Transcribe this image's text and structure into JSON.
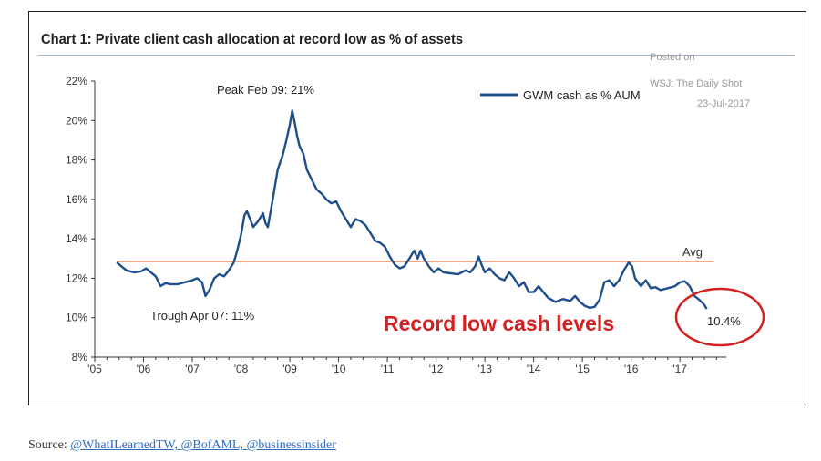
{
  "chart_data": {
    "type": "line",
    "title": "Chart 1: Private client cash allocation at record low as % of assets",
    "series": [
      {
        "name": "GWM cash as % AUM",
        "color": "#1f4e8c",
        "points": [
          [
            2005.45,
            12.8
          ],
          [
            2005.55,
            12.6
          ],
          [
            2005.65,
            12.4
          ],
          [
            2005.8,
            12.3
          ],
          [
            2005.95,
            12.35
          ],
          [
            2006.05,
            12.5
          ],
          [
            2006.15,
            12.3
          ],
          [
            2006.25,
            12.1
          ],
          [
            2006.35,
            11.6
          ],
          [
            2006.45,
            11.75
          ],
          [
            2006.55,
            11.7
          ],
          [
            2006.7,
            11.7
          ],
          [
            2006.85,
            11.8
          ],
          [
            2007.0,
            11.9
          ],
          [
            2007.1,
            12.0
          ],
          [
            2007.2,
            11.8
          ],
          [
            2007.27,
            11.1
          ],
          [
            2007.35,
            11.4
          ],
          [
            2007.45,
            12.0
          ],
          [
            2007.55,
            12.2
          ],
          [
            2007.65,
            12.1
          ],
          [
            2007.75,
            12.4
          ],
          [
            2007.85,
            12.8
          ],
          [
            2007.92,
            13.4
          ],
          [
            2008.0,
            14.2
          ],
          [
            2008.07,
            15.2
          ],
          [
            2008.12,
            15.4
          ],
          [
            2008.17,
            15.1
          ],
          [
            2008.25,
            14.6
          ],
          [
            2008.35,
            14.9
          ],
          [
            2008.45,
            15.3
          ],
          [
            2008.5,
            14.8
          ],
          [
            2008.55,
            14.6
          ],
          [
            2008.65,
            16.0
          ],
          [
            2008.75,
            17.5
          ],
          [
            2008.85,
            18.2
          ],
          [
            2008.93,
            19.0
          ],
          [
            2009.0,
            19.8
          ],
          [
            2009.05,
            20.5
          ],
          [
            2009.1,
            19.9
          ],
          [
            2009.15,
            19.2
          ],
          [
            2009.2,
            18.7
          ],
          [
            2009.28,
            18.3
          ],
          [
            2009.35,
            17.5
          ],
          [
            2009.45,
            17.0
          ],
          [
            2009.55,
            16.5
          ],
          [
            2009.65,
            16.3
          ],
          [
            2009.75,
            16.0
          ],
          [
            2009.85,
            15.8
          ],
          [
            2009.95,
            15.9
          ],
          [
            2010.05,
            15.4
          ],
          [
            2010.15,
            15.0
          ],
          [
            2010.25,
            14.6
          ],
          [
            2010.35,
            15.0
          ],
          [
            2010.45,
            14.9
          ],
          [
            2010.55,
            14.7
          ],
          [
            2010.65,
            14.3
          ],
          [
            2010.75,
            13.9
          ],
          [
            2010.85,
            13.8
          ],
          [
            2010.95,
            13.6
          ],
          [
            2011.05,
            13.1
          ],
          [
            2011.15,
            12.7
          ],
          [
            2011.25,
            12.5
          ],
          [
            2011.35,
            12.6
          ],
          [
            2011.45,
            13.0
          ],
          [
            2011.55,
            13.4
          ],
          [
            2011.62,
            13.0
          ],
          [
            2011.68,
            13.4
          ],
          [
            2011.75,
            13.0
          ],
          [
            2011.85,
            12.6
          ],
          [
            2011.95,
            12.3
          ],
          [
            2012.05,
            12.5
          ],
          [
            2012.15,
            12.3
          ],
          [
            2012.3,
            12.25
          ],
          [
            2012.45,
            12.2
          ],
          [
            2012.6,
            12.4
          ],
          [
            2012.7,
            12.3
          ],
          [
            2012.8,
            12.6
          ],
          [
            2012.87,
            13.1
          ],
          [
            2012.93,
            12.7
          ],
          [
            2013.0,
            12.3
          ],
          [
            2013.1,
            12.5
          ],
          [
            2013.2,
            12.2
          ],
          [
            2013.3,
            12.0
          ],
          [
            2013.4,
            11.9
          ],
          [
            2013.5,
            12.3
          ],
          [
            2013.6,
            12.0
          ],
          [
            2013.7,
            11.6
          ],
          [
            2013.8,
            11.8
          ],
          [
            2013.9,
            11.3
          ],
          [
            2014.0,
            11.3
          ],
          [
            2014.1,
            11.6
          ],
          [
            2014.2,
            11.3
          ],
          [
            2014.3,
            11.0
          ],
          [
            2014.45,
            10.8
          ],
          [
            2014.6,
            10.95
          ],
          [
            2014.75,
            10.85
          ],
          [
            2014.85,
            11.1
          ],
          [
            2014.95,
            10.8
          ],
          [
            2015.05,
            10.6
          ],
          [
            2015.15,
            10.5
          ],
          [
            2015.25,
            10.55
          ],
          [
            2015.35,
            10.9
          ],
          [
            2015.45,
            11.8
          ],
          [
            2015.55,
            11.9
          ],
          [
            2015.65,
            11.6
          ],
          [
            2015.75,
            11.9
          ],
          [
            2015.85,
            12.4
          ],
          [
            2015.95,
            12.8
          ],
          [
            2016.02,
            12.6
          ],
          [
            2016.08,
            12.0
          ],
          [
            2016.2,
            11.6
          ],
          [
            2016.3,
            11.9
          ],
          [
            2016.4,
            11.5
          ],
          [
            2016.5,
            11.55
          ],
          [
            2016.6,
            11.4
          ],
          [
            2016.75,
            11.5
          ],
          [
            2016.9,
            11.6
          ],
          [
            2017.0,
            11.8
          ],
          [
            2017.1,
            11.85
          ],
          [
            2017.2,
            11.6
          ],
          [
            2017.3,
            11.1
          ],
          [
            2017.4,
            10.9
          ],
          [
            2017.5,
            10.65
          ],
          [
            2017.55,
            10.45
          ]
        ]
      }
    ],
    "average": {
      "label": "Avg",
      "value": 12.85,
      "color": "#e0906a"
    },
    "xlim": [
      2005.0,
      2017.95
    ],
    "ylim": [
      8,
      22
    ],
    "y_ticks": [
      {
        "value": 8,
        "label": "8%"
      },
      {
        "value": 10,
        "label": "10%"
      },
      {
        "value": 12,
        "label": "12%"
      },
      {
        "value": 14,
        "label": "14%"
      },
      {
        "value": 16,
        "label": "16%"
      },
      {
        "value": 18,
        "label": "18%"
      },
      {
        "value": 20,
        "label": "20%"
      },
      {
        "value": 22,
        "label": "22%"
      }
    ],
    "x_ticks": [
      {
        "value": 2005,
        "label": "'05"
      },
      {
        "value": 2006,
        "label": "'06"
      },
      {
        "value": 2007,
        "label": "'07"
      },
      {
        "value": 2008,
        "label": "'08"
      },
      {
        "value": 2009,
        "label": "'09"
      },
      {
        "value": 2010,
        "label": "'10"
      },
      {
        "value": 2011,
        "label": "'11"
      },
      {
        "value": 2012,
        "label": "'12"
      },
      {
        "value": 2013,
        "label": "'13"
      },
      {
        "value": 2014,
        "label": "'14"
      },
      {
        "value": 2015,
        "label": "'15"
      },
      {
        "value": 2016,
        "label": "'16"
      },
      {
        "value": 2017,
        "label": "'17"
      }
    ],
    "legend_position": "top-right",
    "annotations": {
      "peak": {
        "text": "Peak Feb 09: 21%"
      },
      "trough": {
        "text": "Trough Apr 07: 11%"
      },
      "record": {
        "text": "Record low cash levels",
        "color": "#d42020"
      },
      "last_value": {
        "text": "10.4%",
        "circle_color": "#d42020"
      }
    }
  },
  "watermark": {
    "line1": "Posted on",
    "line2": "WSJ: The Daily Shot",
    "line3": "23-Jul-2017"
  },
  "source": {
    "label": "Source:",
    "links": "@WhatILearnedTW, @BofAML, @businessinsider"
  }
}
